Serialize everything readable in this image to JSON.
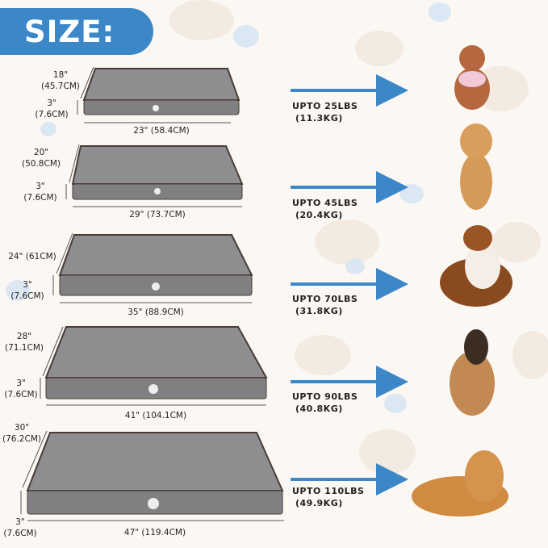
{
  "title": "SIZE:",
  "colors": {
    "accent": "#3b87c7",
    "bed": "#8a8a8c",
    "piping": "#4a3b36",
    "arrow": "#3b87c7"
  },
  "beds": [
    {
      "depth_in": "18\"",
      "depth_cm": "(45.7CM)",
      "height_in": "3\"",
      "height_cm": "(7.6CM)",
      "width": "23\" (58.4CM)",
      "capacity": "UPTO 25LBS",
      "capacity_kg": "(11.3KG)"
    },
    {
      "depth_in": "20\"",
      "depth_cm": "(50.8CM)",
      "height_in": "3\"",
      "height_cm": "(7.6CM)",
      "width": "29\" (73.7CM)",
      "capacity": "UPTO 45LBS",
      "capacity_kg": "(20.4KG)"
    },
    {
      "depth_in": "24\" (61CM)",
      "depth_cm": "",
      "height_in": "3\"",
      "height_cm": "(7.6CM)",
      "width": "35\" (88.9CM)",
      "capacity": "UPTO 70LBS",
      "capacity_kg": "(31.8KG)"
    },
    {
      "depth_in": "28\"",
      "depth_cm": "(71.1CM)",
      "height_in": "3\"",
      "height_cm": "(7.6CM)",
      "width": "41\" (104.1CM)",
      "capacity": "UPTO 90LBS",
      "capacity_kg": "(40.8KG)"
    },
    {
      "depth_in": "30\"",
      "depth_cm": "(76.2CM)",
      "height_in": "3\"",
      "height_cm": "(7.6CM)",
      "width": "47\" (119.4CM)",
      "capacity": "UPTO 110LBS",
      "capacity_kg": "(49.9KG)"
    }
  ],
  "icons": [
    "dog-bed-image",
    "arrow-right-icon",
    "dog-photo"
  ]
}
